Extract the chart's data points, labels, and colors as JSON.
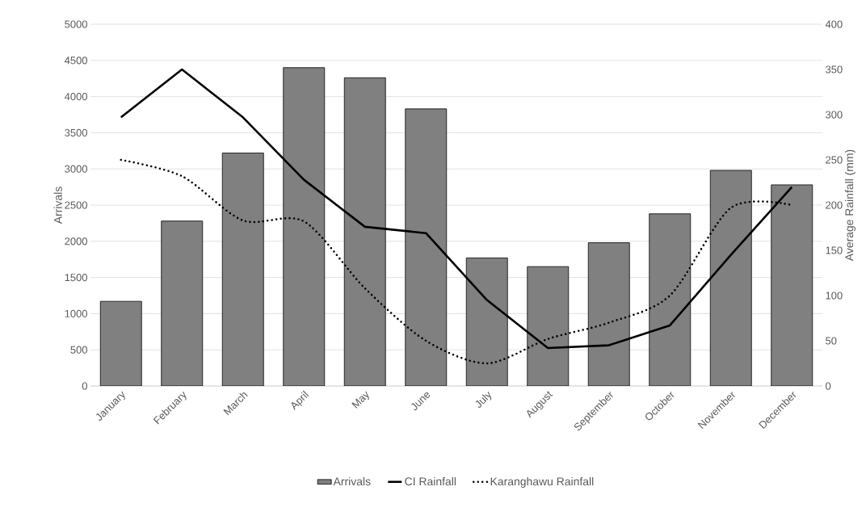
{
  "chart_data": {
    "type": "bar",
    "ylabel": "Arrivals",
    "y2label": "Average Rainfall (mm)",
    "categories": [
      "January",
      "February",
      "March",
      "April",
      "May",
      "June",
      "July",
      "August",
      "September",
      "October",
      "November",
      "December"
    ],
    "series": [
      {
        "name": "Arrivals",
        "color": "#808080",
        "values": [
          1170,
          2280,
          3220,
          4400,
          4260,
          3830,
          1770,
          1650,
          1980,
          2380,
          2980,
          2780
        ]
      },
      {
        "name": "CI Rainfall",
        "type": "line",
        "axis": "y2",
        "color": "#000000",
        "line_style": "solid",
        "values": [
          297,
          350,
          297,
          228,
          176,
          169,
          95,
          42,
          45,
          67,
          145,
          220
        ]
      },
      {
        "name": "Karanghawu Rainfall",
        "type": "line",
        "axis": "y2",
        "color": "#000000",
        "line_style": "dotted",
        "values": [
          250,
          232,
          183,
          182,
          108,
          50,
          25,
          52,
          70,
          100,
          197,
          200
        ]
      }
    ],
    "ylim": [
      0,
      5000
    ],
    "yticks": [
      0,
      500,
      1000,
      1500,
      2000,
      2500,
      3000,
      3500,
      4000,
      4500,
      5000
    ],
    "y2lim": [
      0,
      400
    ],
    "y2ticks": [
      0,
      50,
      100,
      150,
      200,
      250,
      300,
      350,
      400
    ],
    "grid": "y",
    "legend": "bottom"
  }
}
